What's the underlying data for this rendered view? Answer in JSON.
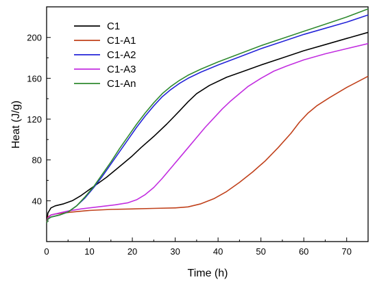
{
  "chart_data": {
    "type": "line",
    "xlabel": "Time (h)",
    "ylabel": "Heat (J/g)",
    "xlim": [
      0,
      75
    ],
    "ylim": [
      0,
      230
    ],
    "x_ticks": [
      0,
      10,
      20,
      30,
      40,
      50,
      60,
      70
    ],
    "y_ticks": [
      40,
      80,
      120,
      160,
      200
    ],
    "legend_position": "top-left",
    "series": [
      {
        "name": "C1",
        "color": "#000000",
        "points": [
          [
            0,
            18
          ],
          [
            0.3,
            28
          ],
          [
            1,
            33
          ],
          [
            2,
            35
          ],
          [
            4,
            37
          ],
          [
            6,
            40
          ],
          [
            8,
            45
          ],
          [
            10,
            51
          ],
          [
            12,
            57
          ],
          [
            14,
            63
          ],
          [
            16,
            70
          ],
          [
            18,
            77
          ],
          [
            20,
            84
          ],
          [
            22,
            92
          ],
          [
            25,
            103
          ],
          [
            28,
            115
          ],
          [
            31,
            128
          ],
          [
            33,
            137
          ],
          [
            35,
            145
          ],
          [
            38,
            153
          ],
          [
            42,
            161
          ],
          [
            46,
            167
          ],
          [
            50,
            173
          ],
          [
            55,
            180
          ],
          [
            60,
            187
          ],
          [
            65,
            193
          ],
          [
            70,
            199
          ],
          [
            75,
            205
          ]
        ]
      },
      {
        "name": "C1-A1",
        "color": "#c0401a",
        "points": [
          [
            0,
            18
          ],
          [
            0.3,
            24
          ],
          [
            1,
            26
          ],
          [
            2,
            27
          ],
          [
            4,
            28
          ],
          [
            6,
            29
          ],
          [
            10,
            30.5
          ],
          [
            15,
            31.5
          ],
          [
            20,
            32
          ],
          [
            25,
            32.5
          ],
          [
            30,
            33
          ],
          [
            33,
            34
          ],
          [
            36,
            37
          ],
          [
            39,
            42
          ],
          [
            42,
            49
          ],
          [
            45,
            58
          ],
          [
            48,
            68
          ],
          [
            51,
            79
          ],
          [
            54,
            92
          ],
          [
            57,
            106
          ],
          [
            59,
            117
          ],
          [
            61,
            126
          ],
          [
            63,
            133
          ],
          [
            66,
            141
          ],
          [
            70,
            151
          ],
          [
            75,
            162
          ]
        ]
      },
      {
        "name": "C1-A2",
        "color": "#2323d8",
        "points": [
          [
            0,
            18
          ],
          [
            0.3,
            22
          ],
          [
            1,
            24
          ],
          [
            3,
            26
          ],
          [
            5,
            29
          ],
          [
            7,
            35
          ],
          [
            9,
            43
          ],
          [
            11,
            53
          ],
          [
            13,
            64
          ],
          [
            15,
            76
          ],
          [
            17,
            88
          ],
          [
            19,
            100
          ],
          [
            21,
            112
          ],
          [
            23,
            123
          ],
          [
            25,
            133
          ],
          [
            27,
            142
          ],
          [
            29,
            149
          ],
          [
            31,
            155
          ],
          [
            33,
            160
          ],
          [
            36,
            166
          ],
          [
            40,
            173
          ],
          [
            45,
            181
          ],
          [
            50,
            189
          ],
          [
            55,
            196
          ],
          [
            60,
            203
          ],
          [
            65,
            209
          ],
          [
            70,
            215
          ],
          [
            75,
            222
          ]
        ]
      },
      {
        "name": "C1-A3",
        "color": "#c22de0",
        "points": [
          [
            0,
            18
          ],
          [
            0.3,
            23
          ],
          [
            1,
            26
          ],
          [
            3,
            28
          ],
          [
            5,
            30
          ],
          [
            8,
            32
          ],
          [
            12,
            34
          ],
          [
            16,
            36
          ],
          [
            19,
            38
          ],
          [
            21,
            41
          ],
          [
            23,
            46
          ],
          [
            25,
            53
          ],
          [
            27,
            62
          ],
          [
            29,
            72
          ],
          [
            31,
            82
          ],
          [
            33,
            92
          ],
          [
            35,
            102
          ],
          [
            37,
            112
          ],
          [
            39,
            121
          ],
          [
            41,
            130
          ],
          [
            43,
            138
          ],
          [
            45,
            145
          ],
          [
            47,
            152
          ],
          [
            50,
            160
          ],
          [
            53,
            167
          ],
          [
            56,
            172
          ],
          [
            60,
            178
          ],
          [
            65,
            184
          ],
          [
            70,
            189
          ],
          [
            75,
            194
          ]
        ]
      },
      {
        "name": "C1-An",
        "color": "#2f8a2f",
        "points": [
          [
            0,
            18
          ],
          [
            0.3,
            22
          ],
          [
            1,
            24
          ],
          [
            3,
            26
          ],
          [
            5,
            29
          ],
          [
            7,
            35
          ],
          [
            9,
            44
          ],
          [
            11,
            54
          ],
          [
            13,
            66
          ],
          [
            15,
            78
          ],
          [
            17,
            91
          ],
          [
            19,
            103
          ],
          [
            21,
            115
          ],
          [
            23,
            126
          ],
          [
            25,
            136
          ],
          [
            27,
            145
          ],
          [
            29,
            152
          ],
          [
            31,
            158
          ],
          [
            33,
            163
          ],
          [
            36,
            169
          ],
          [
            40,
            176
          ],
          [
            45,
            184
          ],
          [
            50,
            192
          ],
          [
            55,
            199
          ],
          [
            60,
            206
          ],
          [
            65,
            213
          ],
          [
            70,
            220
          ],
          [
            75,
            228
          ]
        ]
      }
    ]
  }
}
